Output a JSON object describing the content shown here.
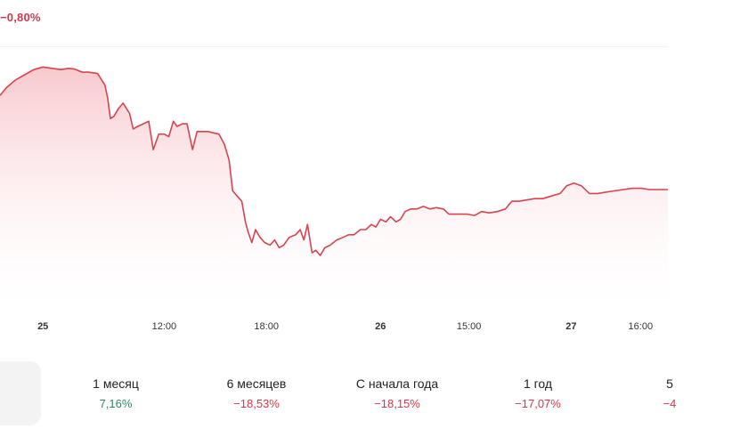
{
  "header": {
    "change_text": "−0,80%"
  },
  "colors": {
    "line": "#d9434f",
    "fill_top": "#f7c6cb",
    "positive": "#2e8a5e",
    "negative": "#d0394b"
  },
  "chart_data": {
    "type": "area",
    "title": "",
    "xlabel": "",
    "ylabel": "",
    "x_ticks": [
      {
        "label": "25",
        "bold": true,
        "x": 0.5
      },
      {
        "label": "12:00",
        "bold": false,
        "x": 13.8
      },
      {
        "label": "18:00",
        "bold": false,
        "x": 25.0
      },
      {
        "label": "26",
        "bold": true,
        "x": 37.5
      },
      {
        "label": "15:00",
        "bold": false,
        "x": 47.2
      },
      {
        "label": "27",
        "bold": true,
        "x": 58.4
      },
      {
        "label": "16:00",
        "bold": false,
        "x": 66.0
      }
    ],
    "xlim": [
      -4.2,
      69.0
    ],
    "ylim": [
      0,
      100
    ],
    "series": [
      {
        "points": [
          [
            -4.2,
            82
          ],
          [
            -3.5,
            85
          ],
          [
            -2.5,
            88
          ],
          [
            -1.5,
            90
          ],
          [
            -0.5,
            92
          ],
          [
            0.5,
            93
          ],
          [
            1.5,
            92.5
          ],
          [
            2.5,
            92
          ],
          [
            3.3,
            92.5
          ],
          [
            4.0,
            92.2
          ],
          [
            4.8,
            91
          ],
          [
            5.5,
            91
          ],
          [
            6.5,
            90.5
          ],
          [
            7.3,
            86
          ],
          [
            7.6,
            81
          ],
          [
            7.9,
            73
          ],
          [
            8.3,
            74
          ],
          [
            8.8,
            77
          ],
          [
            9.3,
            79
          ],
          [
            10.0,
            75
          ],
          [
            10.4,
            69
          ],
          [
            10.9,
            70
          ],
          [
            11.5,
            71
          ],
          [
            12.1,
            72
          ],
          [
            12.6,
            61
          ],
          [
            13.2,
            67
          ],
          [
            13.8,
            67
          ],
          [
            14.3,
            66
          ],
          [
            14.8,
            72
          ],
          [
            15.2,
            70
          ],
          [
            15.8,
            71
          ],
          [
            16.3,
            71
          ],
          [
            16.9,
            61
          ],
          [
            17.4,
            68
          ],
          [
            18.0,
            68
          ],
          [
            18.6,
            68
          ],
          [
            19.2,
            67.5
          ],
          [
            19.8,
            67
          ],
          [
            20.4,
            63
          ],
          [
            20.9,
            57
          ],
          [
            21.3,
            45
          ],
          [
            21.8,
            43
          ],
          [
            22.3,
            41
          ],
          [
            22.7,
            33
          ],
          [
            23.0,
            29
          ],
          [
            23.4,
            25
          ],
          [
            23.8,
            30
          ],
          [
            24.3,
            27
          ],
          [
            24.8,
            25
          ],
          [
            25.4,
            24
          ],
          [
            25.9,
            26
          ],
          [
            26.4,
            23
          ],
          [
            26.9,
            24
          ],
          [
            27.5,
            27
          ],
          [
            28.2,
            28
          ],
          [
            28.7,
            30
          ],
          [
            29.1,
            26
          ],
          [
            29.5,
            32
          ],
          [
            30.0,
            21
          ],
          [
            30.4,
            22
          ],
          [
            30.9,
            20
          ],
          [
            31.4,
            23
          ],
          [
            32.0,
            24
          ],
          [
            32.7,
            26
          ],
          [
            33.4,
            27
          ],
          [
            34.0,
            28
          ],
          [
            34.6,
            28
          ],
          [
            35.3,
            30
          ],
          [
            35.9,
            30
          ],
          [
            36.5,
            32
          ],
          [
            37.0,
            31
          ],
          [
            37.5,
            34
          ],
          [
            38.1,
            33
          ],
          [
            38.6,
            35
          ],
          [
            39.2,
            33
          ],
          [
            39.7,
            34
          ],
          [
            40.2,
            37
          ],
          [
            40.8,
            38
          ],
          [
            41.5,
            38
          ],
          [
            42.2,
            39
          ],
          [
            42.9,
            38
          ],
          [
            43.6,
            38.5
          ],
          [
            44.4,
            38
          ],
          [
            45.0,
            36
          ],
          [
            45.6,
            36
          ],
          [
            46.3,
            36
          ],
          [
            47.0,
            36
          ],
          [
            47.8,
            35.5
          ],
          [
            48.6,
            37
          ],
          [
            49.4,
            36.5
          ],
          [
            50.3,
            37
          ],
          [
            51.2,
            38
          ],
          [
            51.9,
            41
          ],
          [
            52.7,
            41
          ],
          [
            53.5,
            41.5
          ],
          [
            54.4,
            42
          ],
          [
            55.3,
            42
          ],
          [
            56.2,
            43
          ],
          [
            57.2,
            44
          ],
          [
            57.9,
            47
          ],
          [
            58.7,
            48
          ],
          [
            59.5,
            47
          ],
          [
            60.4,
            44
          ],
          [
            61.3,
            44
          ],
          [
            62.2,
            44.5
          ],
          [
            63.1,
            45
          ],
          [
            64.1,
            45.5
          ],
          [
            65.1,
            46
          ],
          [
            66.1,
            46
          ],
          [
            67.0,
            45.5
          ],
          [
            69.0,
            45.5
          ]
        ]
      }
    ]
  },
  "periods": [
    {
      "label": "1 месяц",
      "value": "7,16%",
      "sign": "pos"
    },
    {
      "label": "6 месяцев",
      "value": "−18,53%",
      "sign": "neg"
    },
    {
      "label": "С начала года",
      "value": "−18,15%",
      "sign": "neg"
    },
    {
      "label": "1 год",
      "value": "−17,07%",
      "sign": "neg"
    },
    {
      "label": "5",
      "value": "−4",
      "sign": "neg"
    }
  ]
}
